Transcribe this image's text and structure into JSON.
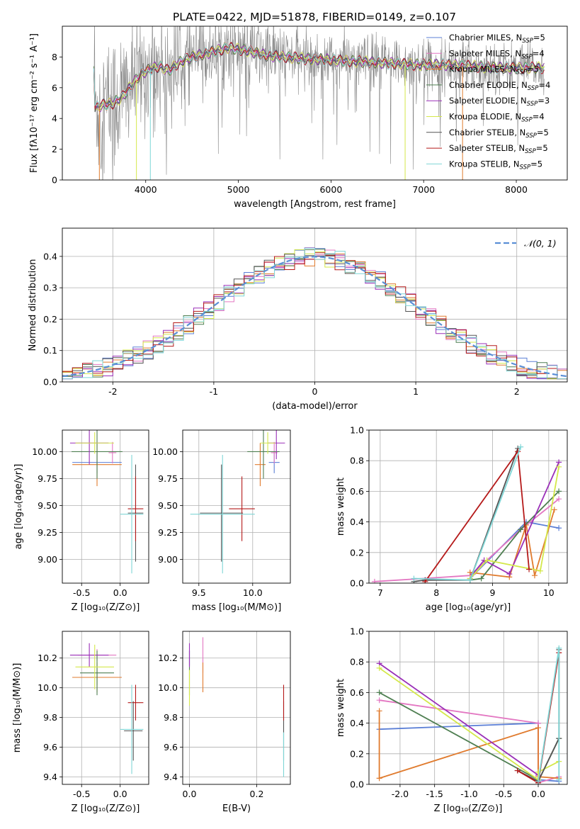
{
  "figure_title": "PLATE=0422, MJD=51878, FIBERID=0149, z=0.107",
  "colors": {
    "Chabrier MILES": "#5b7fd6",
    "Salpeter MILES": "#e377c2",
    "Kroupa MILES": "#e07b2e",
    "Chabrier ELODIE": "#4f7f52",
    "Salpeter ELODIE": "#9a2fb8",
    "Kroupa ELODIE": "#d4e84a",
    "Chabrier STELIB": "#555555",
    "Salpeter STELIB": "#b51a1a",
    "Kroupa STELIB": "#7fd6d6",
    "data": "#888888",
    "normal": "#5b8fd6"
  },
  "chart_data": [
    {
      "id": "spectrum",
      "type": "line",
      "title": "PLATE=0422, MJD=51878, FIBERID=0149, z=0.107",
      "xlabel": "wavelength [Angstrom, rest frame]",
      "ylabel": "Flux [fλ10⁻¹⁷ erg cm⁻² s⁻¹ A⁻¹]",
      "xlim": [
        3100,
        8550
      ],
      "ylim": [
        0,
        10
      ],
      "xticks": [
        4000,
        5000,
        6000,
        7000,
        8000
      ],
      "yticks": [
        0,
        2,
        4,
        6,
        8
      ],
      "legend": [
        {
          "label": "Chabrier MILES, N",
          "sub": "SSP",
          "tail": "=5"
        },
        {
          "label": "Salpeter MILES, N",
          "sub": "SSP",
          "tail": "=4"
        },
        {
          "label": "Kroupa MILES, N",
          "sub": "SSP",
          "tail": "=5"
        },
        {
          "label": "Chabrier ELODIE, N",
          "sub": "SSP",
          "tail": "=4"
        },
        {
          "label": "Salpeter ELODIE, N",
          "sub": "SSP",
          "tail": "=3"
        },
        {
          "label": "Kroupa ELODIE, N",
          "sub": "SSP",
          "tail": "=4"
        },
        {
          "label": "Chabrier STELIB, N",
          "sub": "SSP",
          "tail": "=5"
        },
        {
          "label": "Salpeter STELIB, N",
          "sub": "SSP",
          "tail": "=5"
        },
        {
          "label": "Kroupa STELIB, N",
          "sub": "SSP",
          "tail": "=5"
        }
      ],
      "legend_position": "right",
      "continuum": [
        [
          3450,
          4.7
        ],
        [
          3550,
          4.9
        ],
        [
          3650,
          5.0
        ],
        [
          3750,
          5.4
        ],
        [
          3850,
          6.2
        ],
        [
          3950,
          6.9
        ],
        [
          4050,
          7.2
        ],
        [
          4150,
          7.4
        ],
        [
          4250,
          7.1
        ],
        [
          4350,
          7.6
        ],
        [
          4500,
          8.0
        ],
        [
          4700,
          8.3
        ],
        [
          4900,
          8.6
        ],
        [
          5100,
          8.4
        ],
        [
          5300,
          8.1
        ],
        [
          5500,
          8.0
        ],
        [
          5700,
          7.9
        ],
        [
          6000,
          7.8
        ],
        [
          6300,
          7.7
        ],
        [
          6600,
          7.6
        ],
        [
          6900,
          7.5
        ],
        [
          7200,
          7.5
        ],
        [
          7500,
          7.4
        ],
        [
          7800,
          7.3
        ],
        [
          8100,
          7.3
        ],
        [
          8300,
          7.3
        ]
      ]
    },
    {
      "id": "residuals",
      "type": "step-histogram",
      "xlabel": "(data-model)/error",
      "ylabel": "Normed distribution",
      "xlim": [
        -2.5,
        2.5
      ],
      "ylim": [
        0,
        0.49
      ],
      "xticks": [
        -2,
        -1,
        0,
        1,
        2
      ],
      "yticks": [
        0.0,
        0.1,
        0.2,
        0.3,
        0.4
      ],
      "legend": "𝒩(0, 1)",
      "legend_position": "top-right",
      "grid": true
    },
    {
      "id": "age-vs-Z",
      "type": "errorbar",
      "xlabel": "Z [log₁₀(Z/Z⊙)]",
      "ylabel": "age  [log₁₀(age/yr)]",
      "xlim": [
        -0.75,
        0.37
      ],
      "ylim": [
        8.78,
        10.2
      ],
      "xticks": [
        -0.5,
        0.0
      ],
      "yticks": [
        9.0,
        9.25,
        9.5,
        9.75,
        10.0
      ],
      "points": [
        {
          "model": "Chabrier MILES",
          "x": -0.3,
          "xerr": 0.32,
          "y": 9.9,
          "yerr": 0.1
        },
        {
          "model": "Salpeter MILES",
          "x": -0.1,
          "xerr": 0.05,
          "y": 9.99,
          "yerr": 0.1
        },
        {
          "model": "Kroupa MILES",
          "x": -0.3,
          "xerr": 0.32,
          "y": 9.88,
          "yerr": 0.2
        },
        {
          "model": "Chabrier ELODIE",
          "x": -0.3,
          "xerr": 0.33,
          "y": 10.0,
          "yerr": 0.25
        },
        {
          "model": "Salpeter ELODIE",
          "x": -0.4,
          "xerr": 0.25,
          "y": 10.08,
          "yerr": 0.2
        },
        {
          "model": "Kroupa ELODIE",
          "x": -0.33,
          "xerr": 0.25,
          "y": 10.08,
          "yerr": 0.1
        },
        {
          "model": "Chabrier STELIB",
          "x": 0.2,
          "xerr": 0.1,
          "y": 9.43,
          "yerr": 0.45
        },
        {
          "model": "Salpeter STELIB",
          "x": 0.2,
          "xerr": 0.1,
          "y": 9.47,
          "yerr": 0.3
        },
        {
          "model": "Kroupa STELIB",
          "x": 0.15,
          "xerr": 0.15,
          "y": 9.42,
          "yerr": 0.55
        }
      ]
    },
    {
      "id": "age-vs-mass",
      "type": "errorbar",
      "xlabel": "mass [log₁₀(M/M⊙)]",
      "ylabel": "",
      "xlim": [
        9.35,
        10.35
      ],
      "ylim": [
        8.78,
        10.2
      ],
      "xticks": [
        9.5,
        10.0
      ],
      "yticks": [
        9.0,
        9.25,
        9.5,
        9.75,
        10.0
      ],
      "points": [
        {
          "model": "Chabrier MILES",
          "x": 10.2,
          "xerr": 0.05,
          "y": 9.9,
          "yerr": 0.1
        },
        {
          "model": "Salpeter MILES",
          "x": 10.2,
          "xerr": 0.03,
          "y": 9.99,
          "yerr": 0.1
        },
        {
          "model": "Kroupa MILES",
          "x": 10.07,
          "xerr": 0.05,
          "y": 9.88,
          "yerr": 0.2
        },
        {
          "model": "Chabrier ELODIE",
          "x": 10.1,
          "xerr": 0.15,
          "y": 10.0,
          "yerr": 0.25
        },
        {
          "model": "Salpeter ELODIE",
          "x": 10.22,
          "xerr": 0.08,
          "y": 10.08,
          "yerr": 0.15
        },
        {
          "model": "Kroupa ELODIE",
          "x": 10.14,
          "xerr": 0.07,
          "y": 10.08,
          "yerr": 0.1
        },
        {
          "model": "Chabrier STELIB",
          "x": 9.71,
          "xerr": 0.2,
          "y": 9.43,
          "yerr": 0.45
        },
        {
          "model": "Salpeter STELIB",
          "x": 9.9,
          "xerr": 0.12,
          "y": 9.47,
          "yerr": 0.3
        },
        {
          "model": "Kroupa STELIB",
          "x": 9.72,
          "xerr": 0.3,
          "y": 9.42,
          "yerr": 0.55
        }
      ]
    },
    {
      "id": "massweight-vs-age",
      "type": "line",
      "xlabel": "age  [log₁₀(age/yr)]",
      "ylabel": "mass weight",
      "xlim": [
        6.8,
        10.33
      ],
      "ylim": [
        0,
        1.0
      ],
      "xticks": [
        7,
        8,
        9,
        10
      ],
      "yticks": [
        0.0,
        0.2,
        0.4,
        0.6,
        0.8,
        1.0
      ],
      "series": [
        {
          "model": "Chabrier MILES",
          "x": [
            8.6,
            9.6,
            10.18
          ],
          "y": [
            0.03,
            0.4,
            0.36
          ]
        },
        {
          "model": "Salpeter MILES",
          "x": [
            6.9,
            8.6,
            9.5,
            10.18
          ],
          "y": [
            0.01,
            0.05,
            0.35,
            0.55
          ]
        },
        {
          "model": "Kroupa MILES",
          "x": [
            8.6,
            9.3,
            9.6,
            9.75,
            10.1
          ],
          "y": [
            0.07,
            0.04,
            0.38,
            0.05,
            0.48
          ]
        },
        {
          "model": "Chabrier ELODIE",
          "x": [
            8.6,
            8.8,
            9.5,
            10.18
          ],
          "y": [
            0.02,
            0.03,
            0.35,
            0.6
          ]
        },
        {
          "model": "Salpeter ELODIE",
          "x": [
            8.65,
            8.85,
            9.3,
            10.18
          ],
          "y": [
            0.06,
            0.15,
            0.06,
            0.79
          ]
        },
        {
          "model": "Kroupa ELODIE",
          "x": [
            8.6,
            8.9,
            9.85,
            10.18
          ],
          "y": [
            0.03,
            0.15,
            0.08,
            0.76
          ]
        },
        {
          "model": "Chabrier STELIB",
          "x": [
            7.6,
            7.8,
            8.6,
            9.45
          ],
          "y": [
            0.01,
            0.02,
            0.02,
            0.88
          ]
        },
        {
          "model": "Salpeter STELIB",
          "x": [
            7.8,
            9.45,
            9.65
          ],
          "y": [
            0.01,
            0.86,
            0.09
          ]
        },
        {
          "model": "Kroupa STELIB",
          "x": [
            7.6,
            8.6,
            9.5
          ],
          "y": [
            0.03,
            0.02,
            0.89
          ]
        }
      ]
    },
    {
      "id": "mass-vs-Z",
      "type": "errorbar",
      "xlabel": "Z [log₁₀(Z/Z⊙)]",
      "ylabel": "mass [log₁₀(M/M⊙)]",
      "xlim": [
        -0.75,
        0.37
      ],
      "ylim": [
        9.35,
        10.38
      ],
      "xticks": [
        -0.5,
        0.0
      ],
      "yticks": [
        9.4,
        9.6,
        9.8,
        10.0,
        10.2
      ],
      "points": [
        {
          "model": "Chabrier MILES",
          "x": -0.3,
          "xerr": 0.32,
          "y": 10.07,
          "yerr": 0.05
        },
        {
          "model": "Salpeter MILES",
          "x": -0.3,
          "xerr": 0.25,
          "y": 10.22,
          "yerr": 0.04
        },
        {
          "model": "Kroupa MILES",
          "x": -0.3,
          "xerr": 0.32,
          "y": 10.07,
          "yerr": 0.1
        },
        {
          "model": "Chabrier ELODIE",
          "x": -0.3,
          "xerr": 0.22,
          "y": 10.1,
          "yerr": 0.15
        },
        {
          "model": "Salpeter ELODIE",
          "x": -0.4,
          "xerr": 0.25,
          "y": 10.22,
          "yerr": 0.08
        },
        {
          "model": "Kroupa ELODIE",
          "x": -0.33,
          "xerr": 0.25,
          "y": 10.14,
          "yerr": 0.15
        },
        {
          "model": "Chabrier STELIB",
          "x": 0.17,
          "xerr": 0.12,
          "y": 9.71,
          "yerr": 0.2
        },
        {
          "model": "Salpeter STELIB",
          "x": 0.2,
          "xerr": 0.1,
          "y": 9.9,
          "yerr": 0.12
        },
        {
          "model": "Kroupa STELIB",
          "x": 0.15,
          "xerr": 0.15,
          "y": 9.72,
          "yerr": 0.3
        }
      ]
    },
    {
      "id": "mass-vs-ebv",
      "type": "errorbar",
      "xlabel": "E(B-V)",
      "ylabel": "",
      "xlim": [
        -0.02,
        0.3
      ],
      "ylim": [
        9.35,
        10.38
      ],
      "xticks": [
        0.0,
        0.2
      ],
      "yticks": [
        9.4,
        9.6,
        9.8,
        10.0,
        10.2
      ],
      "points": [
        {
          "model": "Chabrier MILES",
          "x": 0.0,
          "y": 10.2,
          "yerr": 0.05
        },
        {
          "model": "Salpeter MILES",
          "x": 0.04,
          "y": 10.22,
          "yerr": 0.12
        },
        {
          "model": "Kroupa MILES",
          "x": 0.04,
          "y": 10.07,
          "yerr": 0.1
        },
        {
          "model": "Chabrier ELODIE",
          "x": 0.0,
          "y": 10.1,
          "yerr": 0.15
        },
        {
          "model": "Salpeter ELODIE",
          "x": 0.0,
          "y": 10.22,
          "yerr": 0.08
        },
        {
          "model": "Kroupa ELODIE",
          "x": 0.0,
          "y": 10.0,
          "yerr": 0.12
        },
        {
          "model": "Chabrier STELIB",
          "x": 0.28,
          "y": 9.71,
          "yerr": 0.2
        },
        {
          "model": "Salpeter STELIB",
          "x": 0.28,
          "y": 9.9,
          "yerr": 0.12
        },
        {
          "model": "Kroupa STELIB",
          "x": 0.28,
          "y": 9.55,
          "yerr": 0.15
        }
      ]
    },
    {
      "id": "massweight-vs-Z",
      "type": "line",
      "xlabel": "Z [log₁₀(Z/Z⊙)]",
      "ylabel": "mass weight",
      "xlim": [
        -2.45,
        0.42
      ],
      "ylim": [
        0,
        1.0
      ],
      "xticks": [
        -2.0,
        -1.5,
        -1.0,
        -0.5,
        0.0
      ],
      "yticks": [
        0.0,
        0.2,
        0.4,
        0.6,
        0.8,
        1.0
      ],
      "series": [
        {
          "model": "Chabrier MILES",
          "x": [
            -2.3,
            0.0,
            0.0,
            0.3
          ],
          "y": [
            0.36,
            0.4,
            0.03,
            0.02
          ]
        },
        {
          "model": "Salpeter MILES",
          "x": [
            -2.3,
            0.0,
            0.0,
            0.3
          ],
          "y": [
            0.55,
            0.4,
            0.01,
            0.05
          ]
        },
        {
          "model": "Kroupa MILES",
          "x": [
            -2.3,
            -2.3,
            0.0,
            0.0,
            0.3
          ],
          "y": [
            0.48,
            0.04,
            0.37,
            0.05,
            0.04
          ]
        },
        {
          "model": "Chabrier ELODIE",
          "x": [
            -2.3,
            0.0,
            0.0,
            0.3
          ],
          "y": [
            0.6,
            0.03,
            0.02,
            0.3
          ]
        },
        {
          "model": "Salpeter ELODIE",
          "x": [
            -2.3,
            0.0,
            0.0
          ],
          "y": [
            0.79,
            0.06,
            0.02
          ]
        },
        {
          "model": "Kroupa ELODIE",
          "x": [
            -2.3,
            0.0,
            0.0,
            0.3
          ],
          "y": [
            0.76,
            0.03,
            0.08,
            0.15
          ]
        },
        {
          "model": "Chabrier STELIB",
          "x": [
            -0.3,
            0.0,
            0.3,
            0.3
          ],
          "y": [
            0.09,
            0.02,
            0.3,
            0.88
          ]
        },
        {
          "model": "Salpeter STELIB",
          "x": [
            -0.3,
            0.0,
            0.3
          ],
          "y": [
            0.09,
            0.01,
            0.86
          ]
        },
        {
          "model": "Kroupa STELIB",
          "x": [
            0.0,
            0.3,
            0.3
          ],
          "y": [
            0.02,
            0.89,
            0.03
          ]
        }
      ]
    }
  ]
}
